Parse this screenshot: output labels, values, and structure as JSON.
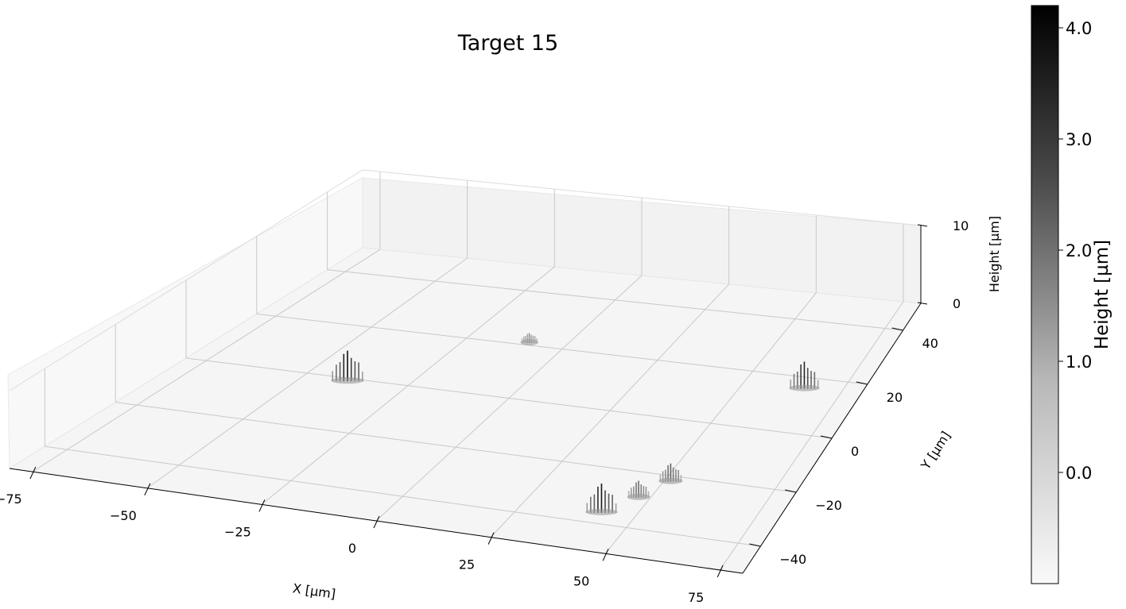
{
  "chart_data": {
    "type": "surface3d",
    "title": "Target 15",
    "xlabel": "X [µm]",
    "ylabel": "Y [µm]",
    "zlabel": "Height [µm]",
    "xlim": [
      -80,
      80
    ],
    "ylim": [
      -50,
      50
    ],
    "zlim": [
      0,
      10
    ],
    "x_ticks": [
      "−75",
      "−50",
      "−25",
      "0",
      "25",
      "50",
      "75"
    ],
    "x_tick_values": [
      -75,
      -50,
      -25,
      0,
      25,
      50,
      75
    ],
    "y_ticks": [
      "−40",
      "−20",
      "0",
      "20",
      "40"
    ],
    "y_tick_values": [
      -40,
      -20,
      0,
      20,
      40
    ],
    "z_ticks": [
      "0",
      "10"
    ],
    "z_tick_values": [
      0,
      10
    ],
    "grid": true,
    "colormap": "Greys",
    "colorbar": {
      "label": "Height [µm]",
      "range": [
        -1,
        4.2
      ],
      "ticks": [
        "0.0",
        "1.0",
        "2.0",
        "3.0",
        "4.0"
      ],
      "tick_values": [
        0,
        1,
        2,
        3,
        4
      ]
    },
    "features": [
      {
        "x": -40,
        "y": 0,
        "height": 4.0
      },
      {
        "x": -10,
        "y": 22,
        "height": 1.0
      },
      {
        "x": 65,
        "y": 17,
        "height": 3.5
      },
      {
        "x": 42,
        "y": -35,
        "height": 3.8
      },
      {
        "x": 47,
        "y": -28,
        "height": 2.0
      },
      {
        "x": 51,
        "y": -21,
        "height": 2.2
      }
    ]
  }
}
